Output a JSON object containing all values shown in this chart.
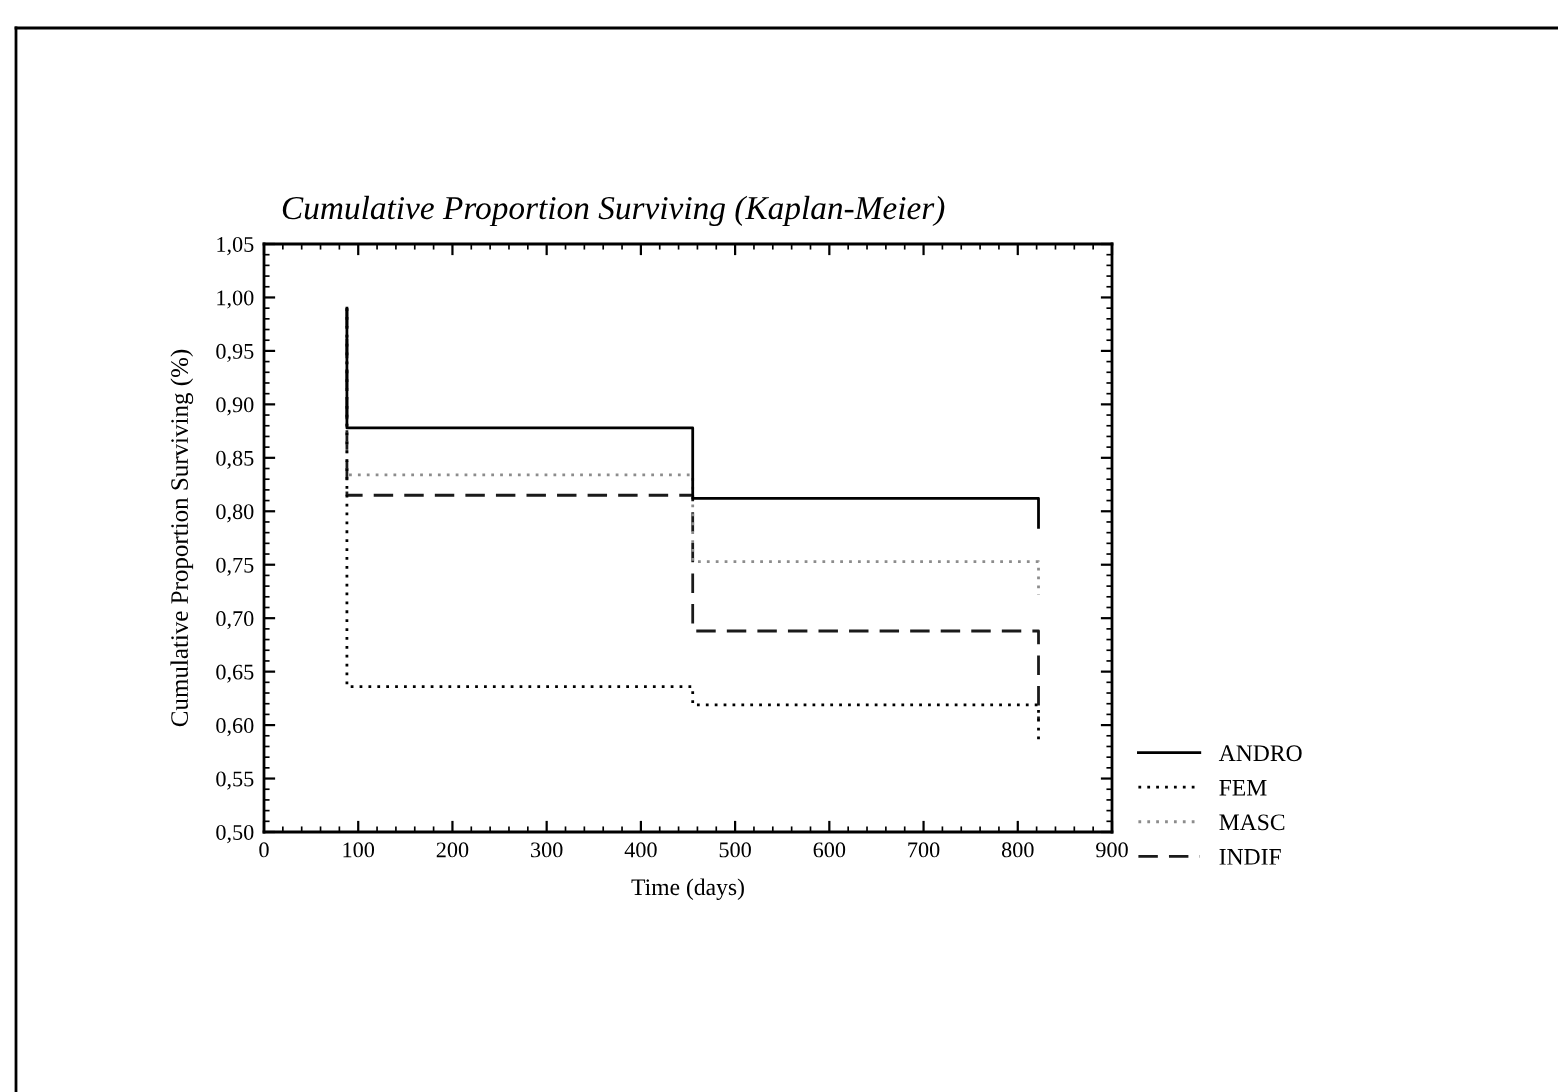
{
  "chart_data": {
    "type": "step",
    "title": "Cumulative Proportion Surviving (Kaplan-Meier)",
    "xlabel": "Time (days)",
    "ylabel": "Cumulative Proportion Surviving (%)",
    "x": [
      88,
      88,
      455,
      822,
      822
    ],
    "series": [
      {
        "name": "ANDRO",
        "color": "#000000",
        "line_style": "solid",
        "values": [
          0.99,
          0.878,
          0.812,
          0.812,
          0.785
        ]
      },
      {
        "name": "FEM",
        "color": "#000000",
        "line_style": "dotted",
        "values": [
          0.99,
          0.636,
          0.619,
          0.619,
          0.586
        ]
      },
      {
        "name": "MASC",
        "color": "#8c8c8c",
        "line_style": "dotted",
        "values": [
          0.99,
          0.834,
          0.753,
          0.753,
          0.722
        ]
      },
      {
        "name": "INDIF",
        "color": "#1a1a1a",
        "line_style": "dashed",
        "values": [
          0.99,
          0.815,
          0.688,
          0.688,
          0.605
        ]
      }
    ],
    "xlim": [
      0,
      900
    ],
    "ylim": [
      0.5,
      1.05
    ],
    "xticks": [
      0,
      100,
      200,
      300,
      400,
      500,
      600,
      700,
      800,
      900
    ],
    "yticks": [
      {
        "value": 0.5,
        "label": "0,50"
      },
      {
        "value": 0.55,
        "label": "0,55"
      },
      {
        "value": 0.6,
        "label": "0,60"
      },
      {
        "value": 0.65,
        "label": "0,65"
      },
      {
        "value": 0.7,
        "label": "0,70"
      },
      {
        "value": 0.75,
        "label": "0,75"
      },
      {
        "value": 0.8,
        "label": "0,80"
      },
      {
        "value": 0.85,
        "label": "0,85"
      },
      {
        "value": 0.9,
        "label": "0,90"
      },
      {
        "value": 0.95,
        "label": "0,95"
      },
      {
        "value": 1.0,
        "label": "1,00"
      },
      {
        "value": 1.05,
        "label": "1,05"
      }
    ],
    "legend": "bottom right"
  }
}
